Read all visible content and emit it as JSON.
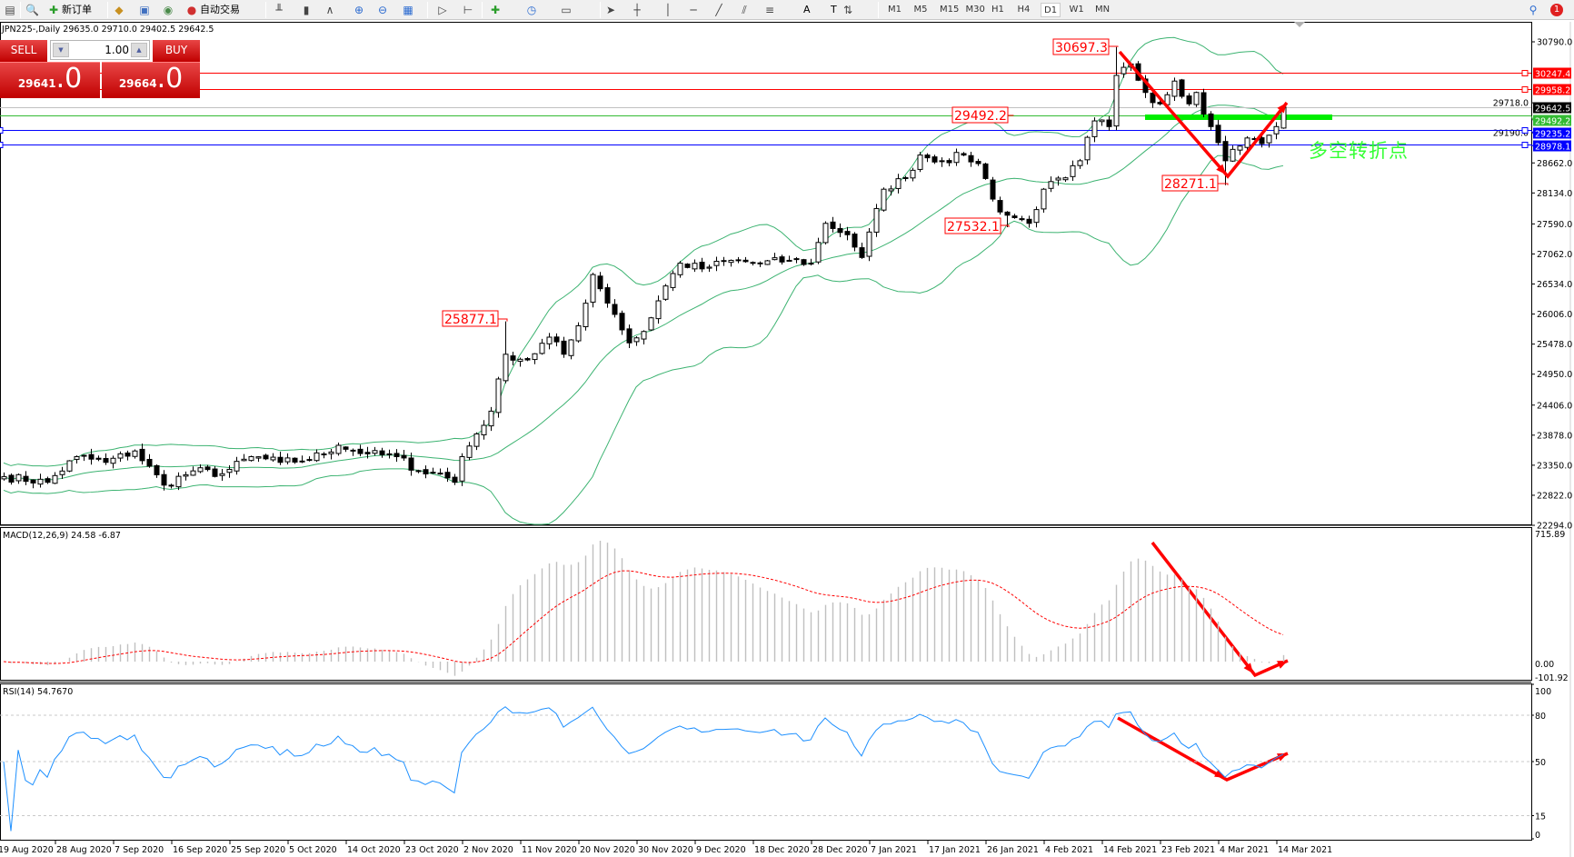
{
  "toolbar": {
    "items": [
      {
        "name": "chart-list-icon"
      },
      {
        "name": "zoom-window-icon"
      },
      {
        "name": "new-order-button",
        "label": "新订单"
      },
      {
        "name": "market-watch-icon"
      },
      {
        "name": "navigator-icon"
      },
      {
        "name": "signal-icon"
      },
      {
        "name": "auto-trading-button",
        "label": "自动交易"
      },
      {
        "name": "bar-chart-icon"
      },
      {
        "name": "candlestick-icon"
      },
      {
        "name": "line-chart-icon"
      },
      {
        "name": "zoom-in-icon"
      },
      {
        "name": "zoom-out-icon"
      },
      {
        "name": "tile-windows-icon"
      },
      {
        "name": "autoscroll-icon"
      },
      {
        "name": "chart-shift-icon"
      },
      {
        "name": "indicators-icon"
      },
      {
        "name": "periods-icon"
      },
      {
        "name": "templates-icon"
      },
      {
        "name": "cursor-icon"
      },
      {
        "name": "crosshair-icon"
      },
      {
        "name": "vertical-line-icon"
      },
      {
        "name": "horizontal-line-icon"
      },
      {
        "name": "trendline-icon"
      },
      {
        "name": "fibonacci-fan-icon"
      },
      {
        "name": "fibonacci-icon"
      },
      {
        "name": "text-icon",
        "label": "A"
      },
      {
        "name": "text-label-icon",
        "label": "T"
      },
      {
        "name": "arrows-icon"
      }
    ],
    "timeframes": [
      "M1",
      "M5",
      "M15",
      "M30",
      "H1",
      "H4",
      "D1",
      "W1",
      "MN"
    ],
    "active_timeframe": "D1",
    "notification_count": "1"
  },
  "chart": {
    "header": "JPN225-,Daily  29635.0 29710.0 29402.5 29642.5",
    "note": "多空转折点",
    "note_color": "#33ff33",
    "trade_panel": {
      "sell_label": "SELL",
      "buy_label": "BUY",
      "lot": "1.00",
      "sell_price_main": "29641",
      "sell_price_big": ".0",
      "buy_price_main": "29664",
      "buy_price_big": ".0"
    },
    "price_axis": [
      "30790.0",
      "29718.0",
      "29190.0",
      "28662.0",
      "28134.0",
      "27590.0",
      "27062.0",
      "26534.0",
      "26006.0",
      "25478.0",
      "24950.0",
      "24406.0",
      "23878.0",
      "23350.0",
      "22822.0",
      "22294.0"
    ],
    "price_lines": [
      {
        "value": "30247.4",
        "color": "#ff0000"
      },
      {
        "value": "29958.2",
        "color": "#ff0000"
      },
      {
        "value": "29642.5",
        "color": "#000000",
        "line": "#c0c0c0"
      },
      {
        "value": "29492.2",
        "color": "#33bb33"
      },
      {
        "value": "29235.2",
        "color": "#0000ff"
      },
      {
        "value": "28978.1",
        "color": "#0000ff"
      }
    ],
    "price_labels": [
      "30697.3",
      "29492.2",
      "28271.1",
      "27532.1",
      "25877.1"
    ],
    "close_keypoints": [
      [
        0,
        23150
      ],
      [
        6,
        23050
      ],
      [
        10,
        23500
      ],
      [
        14,
        23400
      ],
      [
        18,
        23600
      ],
      [
        22,
        23000
      ],
      [
        26,
        23250
      ],
      [
        30,
        23200
      ],
      [
        34,
        23500
      ],
      [
        38,
        23400
      ],
      [
        42,
        23450
      ],
      [
        46,
        23700
      ],
      [
        50,
        23550
      ],
      [
        54,
        23500
      ],
      [
        57,
        23250
      ],
      [
        60,
        23200
      ],
      [
        62,
        23050
      ],
      [
        63,
        23500
      ],
      [
        65,
        23900
      ],
      [
        67,
        24300
      ],
      [
        69,
        25300
      ],
      [
        72,
        25200
      ],
      [
        75,
        25600
      ],
      [
        77,
        25300
      ],
      [
        79,
        25800
      ],
      [
        81,
        26700
      ],
      [
        84,
        26000
      ],
      [
        86,
        25500
      ],
      [
        88,
        25700
      ],
      [
        91,
        26500
      ],
      [
        93,
        26900
      ],
      [
        96,
        26800
      ],
      [
        100,
        26950
      ],
      [
        104,
        26900
      ],
      [
        108,
        26950
      ],
      [
        111,
        26900
      ],
      [
        113,
        27600
      ],
      [
        116,
        27400
      ],
      [
        118,
        27000
      ],
      [
        121,
        28200
      ],
      [
        124,
        28400
      ],
      [
        126,
        28800
      ],
      [
        129,
        28700
      ],
      [
        132,
        28800
      ],
      [
        134,
        28650
      ],
      [
        137,
        27800
      ],
      [
        139,
        27700
      ],
      [
        141,
        27600
      ],
      [
        143,
        28200
      ],
      [
        146,
        28400
      ],
      [
        148,
        28700
      ],
      [
        150,
        29400
      ],
      [
        152,
        29300
      ],
      [
        153,
        30200
      ],
      [
        155,
        30400
      ],
      [
        157,
        29900
      ],
      [
        159,
        29700
      ],
      [
        161,
        30100
      ],
      [
        163,
        29700
      ],
      [
        164,
        29900
      ],
      [
        166,
        29300
      ],
      [
        168,
        28700
      ],
      [
        169,
        28900
      ],
      [
        171,
        29100
      ],
      [
        173,
        29000
      ],
      [
        175,
        29300
      ],
      [
        176,
        29642.5
      ]
    ]
  },
  "macd": {
    "header": "MACD(12,26,9) 24.58 -6.87",
    "axis": [
      "715.89",
      "0.00",
      "-101.92"
    ]
  },
  "rsi": {
    "header": "RSI(14) 54.7670",
    "axis": [
      "100",
      "80",
      "50",
      "15",
      "0"
    ]
  },
  "dates": [
    "19 Aug 2020",
    "28 Aug 2020",
    "7 Sep 2020",
    "16 Sep 2020",
    "25 Sep 2020",
    "5 Oct 2020",
    "14 Oct 2020",
    "23 Oct 2020",
    "2 Nov 2020",
    "11 Nov 2020",
    "20 Nov 2020",
    "30 Nov 2020",
    "9 Dec 2020",
    "18 Dec 2020",
    "28 Dec 2020",
    "7 Jan 2021",
    "17 Jan 2021",
    "26 Jan 2021",
    "4 Feb 2021",
    "14 Feb 2021",
    "23 Feb 2021",
    "4 Mar 2021",
    "14 Mar 2021"
  ],
  "colors": {
    "band": "#3cb371",
    "bull": "#ffffff",
    "bear": "#000000",
    "arrow": "#ff0000",
    "signal": "#ff0000",
    "histogram": "#c0c0c0",
    "rsi": "#1e90ff",
    "hline": "#00ee00"
  }
}
